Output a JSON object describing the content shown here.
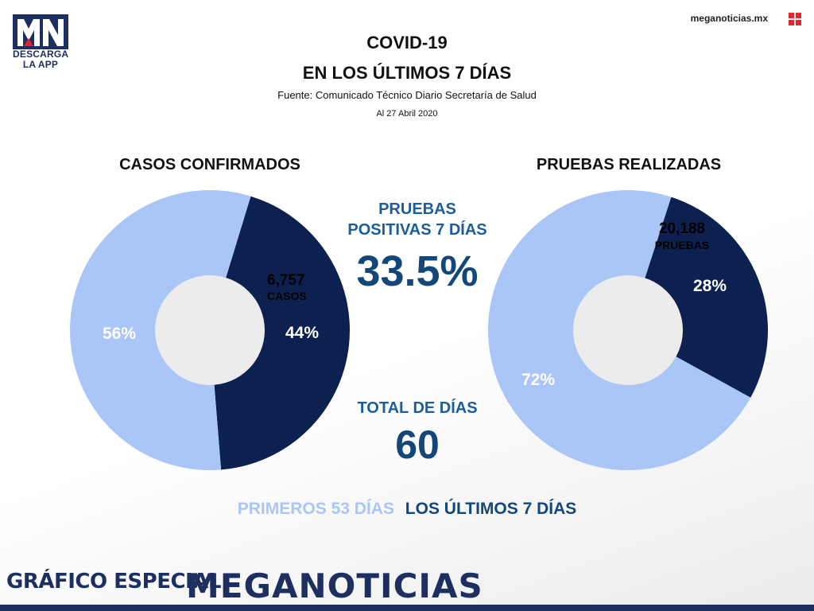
{
  "logo": {
    "text": "MN",
    "cta_line1": "DESCARGA",
    "cta_line2": "LA APP"
  },
  "site": "meganoticias.mx",
  "header": {
    "title": "COVID-19",
    "subtitle": "EN LOS ÚLTIMOS 7 DÍAS",
    "source": "Fuente: Comunicado Técnico Diario Secretaría de Salud",
    "date": "Al 27 Abril 2020"
  },
  "colors": {
    "light": "#a9c6f6",
    "dark": "#0d2150",
    "accent": "#1c5d9a",
    "brand": "#1d2f5e",
    "logo_red": "#e0262b"
  },
  "chart_data": [
    {
      "type": "pie",
      "title": "CASOS CONFIRMADOS",
      "slices": [
        {
          "label": "56%",
          "value": 56,
          "color": "#a9c6f6"
        },
        {
          "label": "44%",
          "value": 44,
          "color": "#0d2150"
        }
      ],
      "annotation_value": "6,757",
      "annotation_unit": "CASOS"
    },
    {
      "type": "pie",
      "title": "PRUEBAS REALIZADAS",
      "slices": [
        {
          "label": "72%",
          "value": 72,
          "color": "#a9c6f6"
        },
        {
          "label": "28%",
          "value": 28,
          "color": "#0d2150"
        }
      ],
      "annotation_value": "20,188",
      "annotation_unit": "PRUEBAS"
    }
  ],
  "stats": {
    "positive_label_line1": "PRUEBAS",
    "positive_label_line2": "POSITIVAS 7 DÍAS",
    "positive_value": "33.5%",
    "days_label": "TOTAL DE DÍAS",
    "days_value": "60"
  },
  "legend": {
    "first": "PRIMEROS 53 DÍAS",
    "last": "LOS ÚLTIMOS 7 DÍAS"
  },
  "footer": {
    "left": "GRÁFICO ESPECIAL",
    "brand": "MEGANOTICIAS"
  }
}
